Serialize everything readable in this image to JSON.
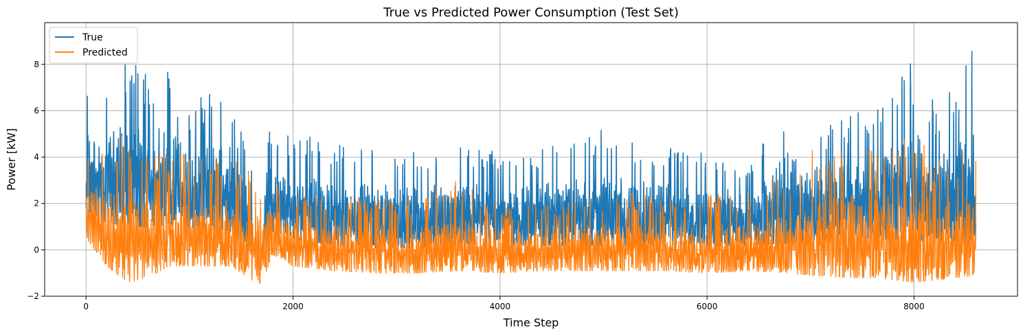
{
  "chart_data": {
    "type": "line",
    "title": "True vs Predicted Power Consumption (Test Set)",
    "xlabel": "Time Step",
    "ylabel": "Power [kW]",
    "xlim": [
      -400,
      9000
    ],
    "ylim": [
      -2,
      9.8
    ],
    "xticks": [
      0,
      2000,
      4000,
      6000,
      8000
    ],
    "yticks": [
      -2,
      0,
      2,
      4,
      6,
      8
    ],
    "grid": true,
    "legend_position": "top-left",
    "colors": {
      "True": "#1f77b4",
      "Predicted": "#ff7f0e"
    },
    "series": [
      {
        "name": "True",
        "approx_envelope": {
          "x": [
            0,
            200,
            400,
            600,
            800,
            1000,
            1200,
            1400,
            1600,
            1700,
            1800,
            2000,
            2400,
            2800,
            3200,
            3600,
            4000,
            4400,
            4800,
            5000,
            5200,
            5600,
            6000,
            6400,
            6800,
            7000,
            7400,
            7600,
            8000,
            8200,
            8400,
            8560,
            8600
          ],
          "low": [
            1.5,
            1.2,
            1.0,
            1.0,
            1.1,
            1.0,
            0.9,
            0.8,
            0.0,
            0.0,
            0.8,
            0.5,
            0.2,
            0.1,
            0.1,
            0.3,
            0.2,
            0.2,
            0.2,
            0.2,
            0.2,
            0.2,
            0.2,
            0.2,
            0.3,
            0.4,
            0.5,
            0.5,
            0.4,
            0.4,
            0.4,
            0.3,
            0.4
          ],
          "high": [
            7.0,
            7.8,
            8.1,
            7.8,
            7.7,
            6.4,
            7.1,
            6.6,
            3.5,
            7.5,
            5.0,
            5.0,
            4.7,
            4.6,
            4.4,
            4.5,
            4.5,
            4.5,
            4.8,
            5.5,
            4.7,
            4.6,
            4.3,
            4.0,
            6.8,
            5.4,
            6.0,
            6.6,
            8.2,
            6.3,
            7.0,
            9.4,
            5.0
          ]
        }
      },
      {
        "name": "Predicted",
        "approx_envelope": {
          "x": [
            0,
            200,
            400,
            600,
            800,
            1000,
            1200,
            1400,
            1600,
            1700,
            1800,
            2000,
            2400,
            2800,
            3200,
            3600,
            4000,
            4400,
            4800,
            5200,
            5600,
            6000,
            6400,
            6800,
            7000,
            7400,
            7600,
            8000,
            8200,
            8400,
            8600
          ],
          "low": [
            0.5,
            -0.7,
            -1.4,
            -1.2,
            -0.7,
            -0.7,
            -0.7,
            -0.7,
            -1.3,
            -1.5,
            -0.2,
            -0.7,
            -0.9,
            -1.0,
            -1.0,
            -0.9,
            -1.0,
            -0.9,
            -0.9,
            -0.9,
            -0.9,
            -1.0,
            -0.9,
            -1.0,
            -1.1,
            -1.2,
            -1.2,
            -1.4,
            -1.3,
            -1.2,
            -1.1
          ],
          "high": [
            4.3,
            4.8,
            4.9,
            4.4,
            4.2,
            4.2,
            4.2,
            3.9,
            3.5,
            3.1,
            3.3,
            2.6,
            2.2,
            2.2,
            2.3,
            3.1,
            1.9,
            2.0,
            2.5,
            2.5,
            2.2,
            2.4,
            2.5,
            3.4,
            4.3,
            4.8,
            4.4,
            5.0,
            4.2,
            4.1,
            4.8
          ]
        }
      }
    ]
  }
}
